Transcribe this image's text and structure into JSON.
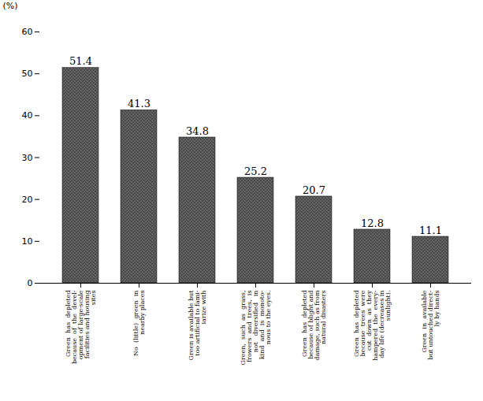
{
  "chart_data": {
    "type": "bar",
    "categories": [
      "Green  has  depleted\nbecause  of  the  devel-\nopment of large-scale\nfacilities and housing\nsites",
      "No  (little)  green  in\nnearby places",
      "Green is available but\ntoo artificial to fami-\niarize with",
      "Green,  such  as  grass,\nfrowers  and  trees,  is\nnot   diversified   in\nkind  and  is  monoto-\nnous to the eyes.",
      "Green  has  depleted\nbecause of blight and\ndamage, such as from\nnatural disasters",
      "Green  has  depleted\nbecause  trees  were\ncut  down  as  they\nhampered  the  every-\nday life (decreases in\nsunlight).",
      "Green  in  available\nbut untouched direct-\nly by hands"
    ],
    "values": [
      51.4,
      41.3,
      34.8,
      25.2,
      20.7,
      12.8,
      11.1
    ],
    "color": "#4a4a4a",
    "ylabel": "(%)",
    "ylim": [
      0,
      60
    ],
    "yticks": [
      0,
      10,
      20,
      30,
      40,
      50,
      60
    ],
    "data_labels": true,
    "grid": false
  }
}
